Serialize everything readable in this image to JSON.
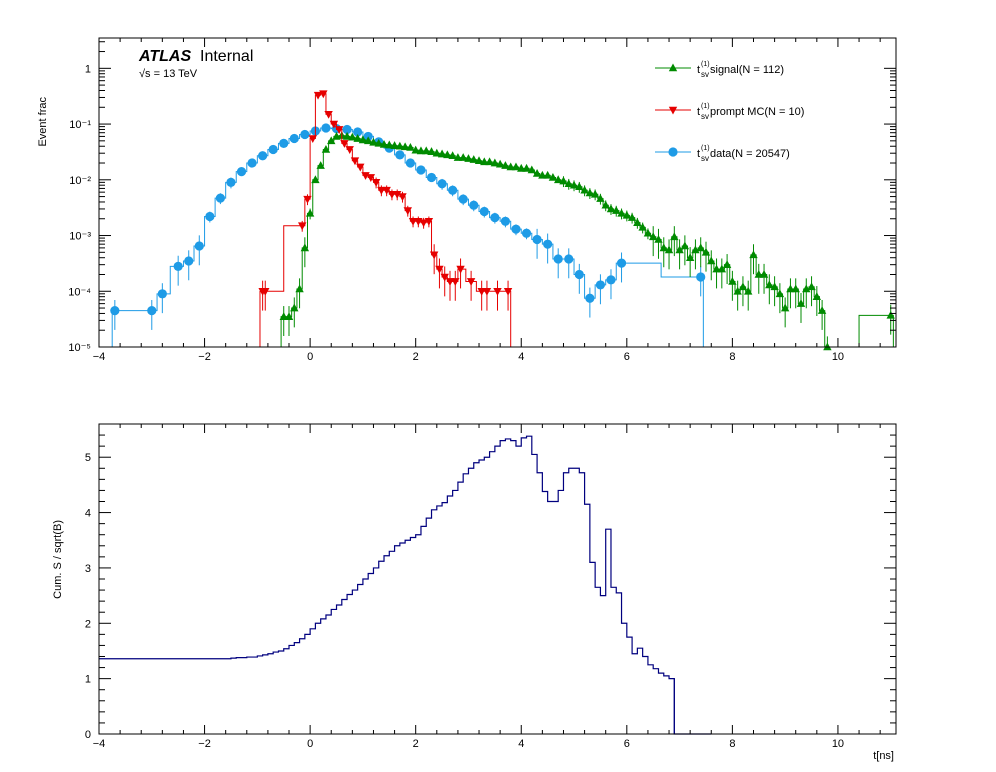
{
  "chart_data": [
    {
      "type": "line",
      "subtype": "histogram-step-with-errorbars",
      "ylabel": "Event frac",
      "xlim": [
        -4,
        11.1
      ],
      "yscale": "log",
      "ylim": [
        1e-05,
        3.5
      ],
      "xticks": [
        "−4",
        "−2",
        "0",
        "2",
        "4",
        "6",
        "8",
        "10"
      ],
      "xtick_values": [
        -4,
        -2,
        0,
        2,
        4,
        6,
        8,
        10
      ],
      "yticks": [
        "10⁻⁵",
        "10⁻⁴",
        "10⁻³",
        "10⁻²",
        "10⁻¹",
        "1"
      ],
      "ytick_values": [
        1e-05,
        0.0001,
        0.001,
        0.01,
        0.1,
        1
      ],
      "annotation": {
        "atlas": "ATLAS",
        "internal": "Internal",
        "energy": "√s = 13 TeV"
      },
      "legend_position": "top-right",
      "series": [
        {
          "name": "t_sv^(1) signal(N = 112)",
          "label_main": "t",
          "label_sup": "(1)",
          "label_sub": "sv",
          "label_rest": " signal(N = 112)",
          "color": "#008b00",
          "marker": "triangle-up",
          "x": [
            -0.5,
            -0.4,
            -0.3,
            -0.2,
            -0.1,
            0.0,
            0.1,
            0.2,
            0.3,
            0.4,
            0.5,
            0.6,
            0.7,
            0.8,
            0.9,
            1.0,
            1.1,
            1.2,
            1.3,
            1.4,
            1.5,
            1.6,
            1.7,
            1.8,
            1.9,
            2.0,
            2.1,
            2.2,
            2.3,
            2.4,
            2.5,
            2.6,
            2.7,
            2.8,
            2.9,
            3.0,
            3.1,
            3.2,
            3.3,
            3.4,
            3.5,
            3.6,
            3.7,
            3.8,
            3.9,
            4.0,
            4.1,
            4.2,
            4.3,
            4.4,
            4.5,
            4.6,
            4.7,
            4.8,
            4.9,
            5.0,
            5.1,
            5.2,
            5.3,
            5.4,
            5.5,
            5.6,
            5.7,
            5.8,
            5.9,
            6.0,
            6.1,
            6.2,
            6.3,
            6.4,
            6.5,
            6.6,
            6.7,
            6.8,
            6.9,
            7.0,
            7.1,
            7.2,
            7.3,
            7.4,
            7.5,
            7.6,
            7.7,
            7.8,
            7.9,
            8.0,
            8.1,
            8.2,
            8.3,
            8.4,
            8.5,
            8.6,
            8.7,
            8.8,
            8.9,
            9.0,
            9.1,
            9.2,
            9.3,
            9.4,
            9.5,
            9.6,
            9.7,
            9.8,
            11.0
          ],
          "y": [
            3.5e-05,
            3.5e-05,
            5e-05,
            0.00011,
            0.0006,
            0.0025,
            0.01,
            0.018,
            0.035,
            0.05,
            0.06,
            0.062,
            0.06,
            0.058,
            0.055,
            0.052,
            0.05,
            0.047,
            0.045,
            0.043,
            0.042,
            0.041,
            0.04,
            0.039,
            0.038,
            0.034,
            0.033,
            0.033,
            0.032,
            0.03,
            0.029,
            0.028,
            0.027,
            0.025,
            0.025,
            0.024,
            0.023,
            0.022,
            0.021,
            0.021,
            0.02,
            0.019,
            0.018,
            0.017,
            0.017,
            0.016,
            0.016,
            0.015,
            0.013,
            0.012,
            0.012,
            0.011,
            0.01,
            0.0095,
            0.0085,
            0.008,
            0.0075,
            0.0065,
            0.0058,
            0.0055,
            0.0046,
            0.0035,
            0.003,
            0.0028,
            0.0025,
            0.0023,
            0.0021,
            0.0017,
            0.0014,
            0.0011,
            0.00095,
            0.00085,
            0.0006,
            0.00055,
            0.00095,
            0.00055,
            0.00065,
            0.0004,
            0.00055,
            0.0006,
            0.0005,
            0.00035,
            0.00025,
            0.00025,
            0.0003,
            0.00015,
            0.0001,
            0.00012,
            0.0001,
            0.00045,
            0.0002,
            0.0002,
            0.00013,
            0.00012,
            9e-05,
            5e-05,
            0.00011,
            0.00011,
            6e-05,
            0.00011,
            0.00012,
            8e-05,
            4.5e-05,
            1e-05,
            3.7e-05
          ]
        },
        {
          "name": "t_sv^(1) prompt MC(N = 10)",
          "label_main": "t",
          "label_sup": "(1)",
          "label_sub": "sv",
          "label_rest": " prompt MC(N = 10)",
          "color": "#e60000",
          "marker": "triangle-down",
          "x": [
            -0.9,
            -0.85,
            -0.15,
            -0.05,
            0.05,
            0.15,
            0.25,
            0.35,
            0.45,
            0.55,
            0.65,
            0.75,
            0.85,
            0.95,
            1.05,
            1.15,
            1.25,
            1.35,
            1.45,
            1.55,
            1.65,
            1.75,
            1.85,
            1.95,
            2.05,
            2.15,
            2.25,
            2.35,
            2.45,
            2.55,
            2.65,
            2.75,
            2.85,
            3.05,
            3.25,
            3.35,
            3.55,
            3.75
          ],
          "y": [
            0.0001,
            0.0001,
            0.0015,
            0.0045,
            0.055,
            0.33,
            0.35,
            0.15,
            0.1,
            0.08,
            0.045,
            0.035,
            0.022,
            0.017,
            0.012,
            0.011,
            0.009,
            0.0065,
            0.0065,
            0.0055,
            0.0055,
            0.005,
            0.0028,
            0.0018,
            0.0018,
            0.0017,
            0.0018,
            0.00045,
            0.00025,
            0.00018,
            0.00015,
            0.00015,
            0.00025,
            0.00015,
            0.0001,
            0.0001,
            0.0001,
            0.0001
          ]
        },
        {
          "name": "t_sv^(1) data(N = 20547)",
          "label_main": "t",
          "label_sup": "(1)",
          "label_sub": "sv",
          "label_rest": " data(N = 20547)",
          "color": "#1e9be6",
          "marker": "circle",
          "x": [
            -3.7,
            -3.0,
            -2.8,
            -2.5,
            -2.3,
            -2.1,
            -1.9,
            -1.7,
            -1.5,
            -1.3,
            -1.1,
            -0.9,
            -0.7,
            -0.5,
            -0.3,
            -0.1,
            0.1,
            0.3,
            0.5,
            0.7,
            0.9,
            1.1,
            1.3,
            1.5,
            1.7,
            1.9,
            2.1,
            2.3,
            2.5,
            2.7,
            2.9,
            3.1,
            3.3,
            3.5,
            3.7,
            3.9,
            4.1,
            4.3,
            4.5,
            4.7,
            4.9,
            5.1,
            5.3,
            5.5,
            5.7,
            5.9,
            7.4
          ],
          "y": [
            4.5e-05,
            4.5e-05,
            9e-05,
            0.00028,
            0.00035,
            0.00065,
            0.0022,
            0.0047,
            0.009,
            0.014,
            0.02,
            0.027,
            0.035,
            0.045,
            0.055,
            0.065,
            0.075,
            0.085,
            0.083,
            0.08,
            0.072,
            0.06,
            0.048,
            0.037,
            0.028,
            0.02,
            0.015,
            0.011,
            0.0085,
            0.0065,
            0.0045,
            0.0035,
            0.0027,
            0.0021,
            0.0018,
            0.0013,
            0.0011,
            0.00085,
            0.0007,
            0.00038,
            0.00038,
            0.0002,
            7.5e-05,
            0.00013,
            0.00016,
            0.00032,
            0.00018
          ]
        }
      ]
    },
    {
      "type": "line",
      "subtype": "histogram-step",
      "ylabel": "Cum. S / sqrt(B)",
      "xlabel": "t[ns]",
      "xlim": [
        -4,
        11.1
      ],
      "ylim": [
        0,
        5.6
      ],
      "xticks": [
        "−4",
        "−2",
        "0",
        "2",
        "4",
        "6",
        "8",
        "10"
      ],
      "xtick_values": [
        -4,
        -2,
        0,
        2,
        4,
        6,
        8,
        10
      ],
      "yticks": [
        "0",
        "1",
        "2",
        "3",
        "4",
        "5"
      ],
      "ytick_values": [
        0,
        1,
        2,
        3,
        4,
        5
      ],
      "series": [
        {
          "name": "",
          "color": "#00007f",
          "x": [
            -4.0,
            -1.5,
            -1.4,
            -1.2,
            -1.0,
            -0.9,
            -0.8,
            -0.7,
            -0.6,
            -0.5,
            -0.4,
            -0.3,
            -0.2,
            -0.1,
            0.0,
            0.1,
            0.2,
            0.3,
            0.4,
            0.5,
            0.6,
            0.7,
            0.8,
            0.9,
            1.0,
            1.1,
            1.2,
            1.3,
            1.4,
            1.5,
            1.6,
            1.7,
            1.8,
            1.9,
            2.0,
            2.1,
            2.2,
            2.3,
            2.4,
            2.5,
            2.6,
            2.7,
            2.8,
            2.9,
            3.0,
            3.1,
            3.2,
            3.3,
            3.4,
            3.5,
            3.6,
            3.7,
            3.8,
            3.9,
            4.0,
            4.1,
            4.2,
            4.3,
            4.4,
            4.5,
            4.6,
            4.7,
            4.8,
            4.9,
            5.0,
            5.1,
            5.2,
            5.3,
            5.4,
            5.5,
            5.6,
            5.7,
            5.8,
            5.9,
            6.0,
            6.1,
            6.2,
            6.3,
            6.4,
            6.5,
            6.6,
            6.7,
            6.8,
            6.9,
            7.0,
            7.1,
            7.2,
            7.3,
            7.4,
            7.5
          ],
          "y": [
            1.36,
            1.37,
            1.38,
            1.39,
            1.41,
            1.43,
            1.45,
            1.48,
            1.5,
            1.54,
            1.6,
            1.65,
            1.72,
            1.8,
            1.9,
            2.0,
            2.08,
            2.15,
            2.25,
            2.33,
            2.43,
            2.52,
            2.6,
            2.7,
            2.8,
            2.9,
            3.0,
            3.12,
            3.22,
            3.3,
            3.4,
            3.45,
            3.5,
            3.55,
            3.6,
            3.75,
            3.9,
            4.05,
            4.12,
            4.18,
            4.3,
            4.4,
            4.55,
            4.7,
            4.8,
            4.9,
            4.95,
            5.0,
            5.1,
            5.2,
            5.3,
            5.33,
            5.3,
            5.2,
            5.35,
            5.38,
            5.05,
            4.72,
            4.38,
            4.2,
            4.2,
            4.4,
            4.72,
            4.8,
            4.8,
            4.72,
            4.15,
            3.1,
            2.65,
            2.5,
            3.7,
            2.65,
            2.55,
            2.0,
            1.75,
            1.45,
            1.55,
            1.4,
            1.25,
            1.18,
            1.1,
            1.05,
            1.0,
            0.0,
            0.0,
            0.0,
            0.0,
            0.0,
            0.0,
            0.0
          ]
        }
      ]
    }
  ]
}
